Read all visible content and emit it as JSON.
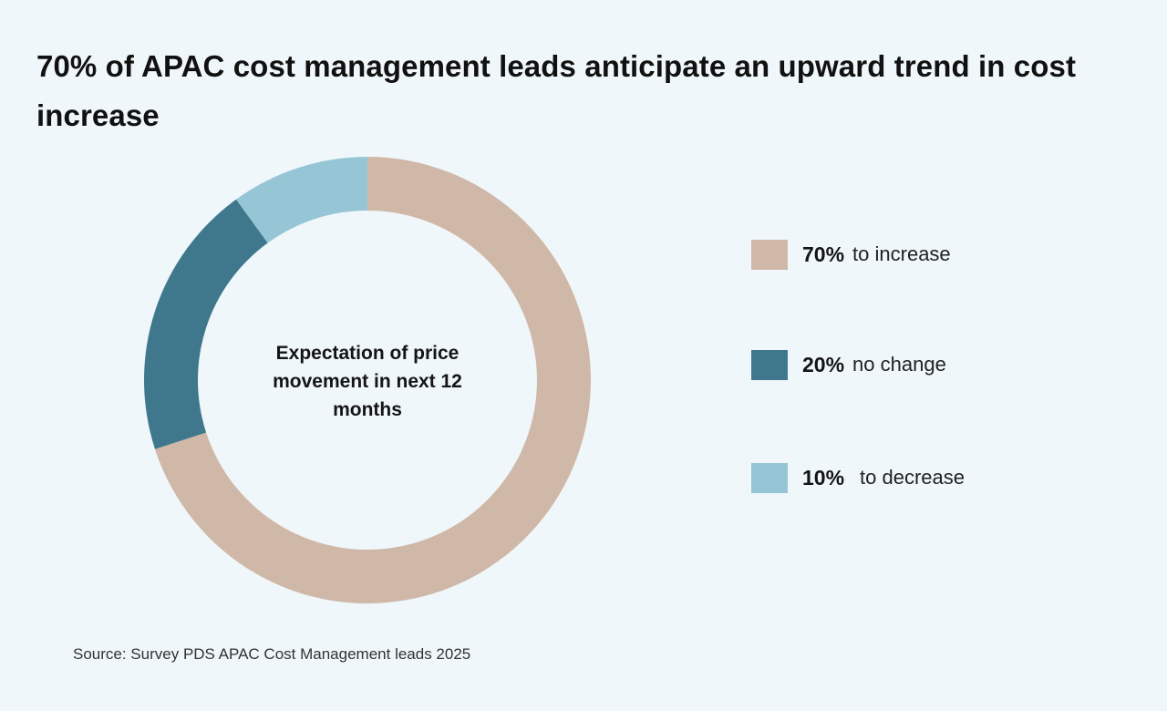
{
  "chart_data": {
    "type": "pie",
    "title": "70% of APAC cost management leads anticipate an upward trend in cost increase",
    "center_label": "Expectation of price movement in next 12 months",
    "categories": [
      "to increase",
      "no change",
      "to decrease"
    ],
    "values": [
      70,
      20,
      10
    ],
    "value_labels": [
      "70%",
      "20%",
      "10%"
    ],
    "colors": [
      "#d0b8a8",
      "#3f788c",
      "#96c6d6"
    ],
    "legend_position": "right",
    "source": "Source: Survey PDS APAC Cost Management leads 2025"
  }
}
